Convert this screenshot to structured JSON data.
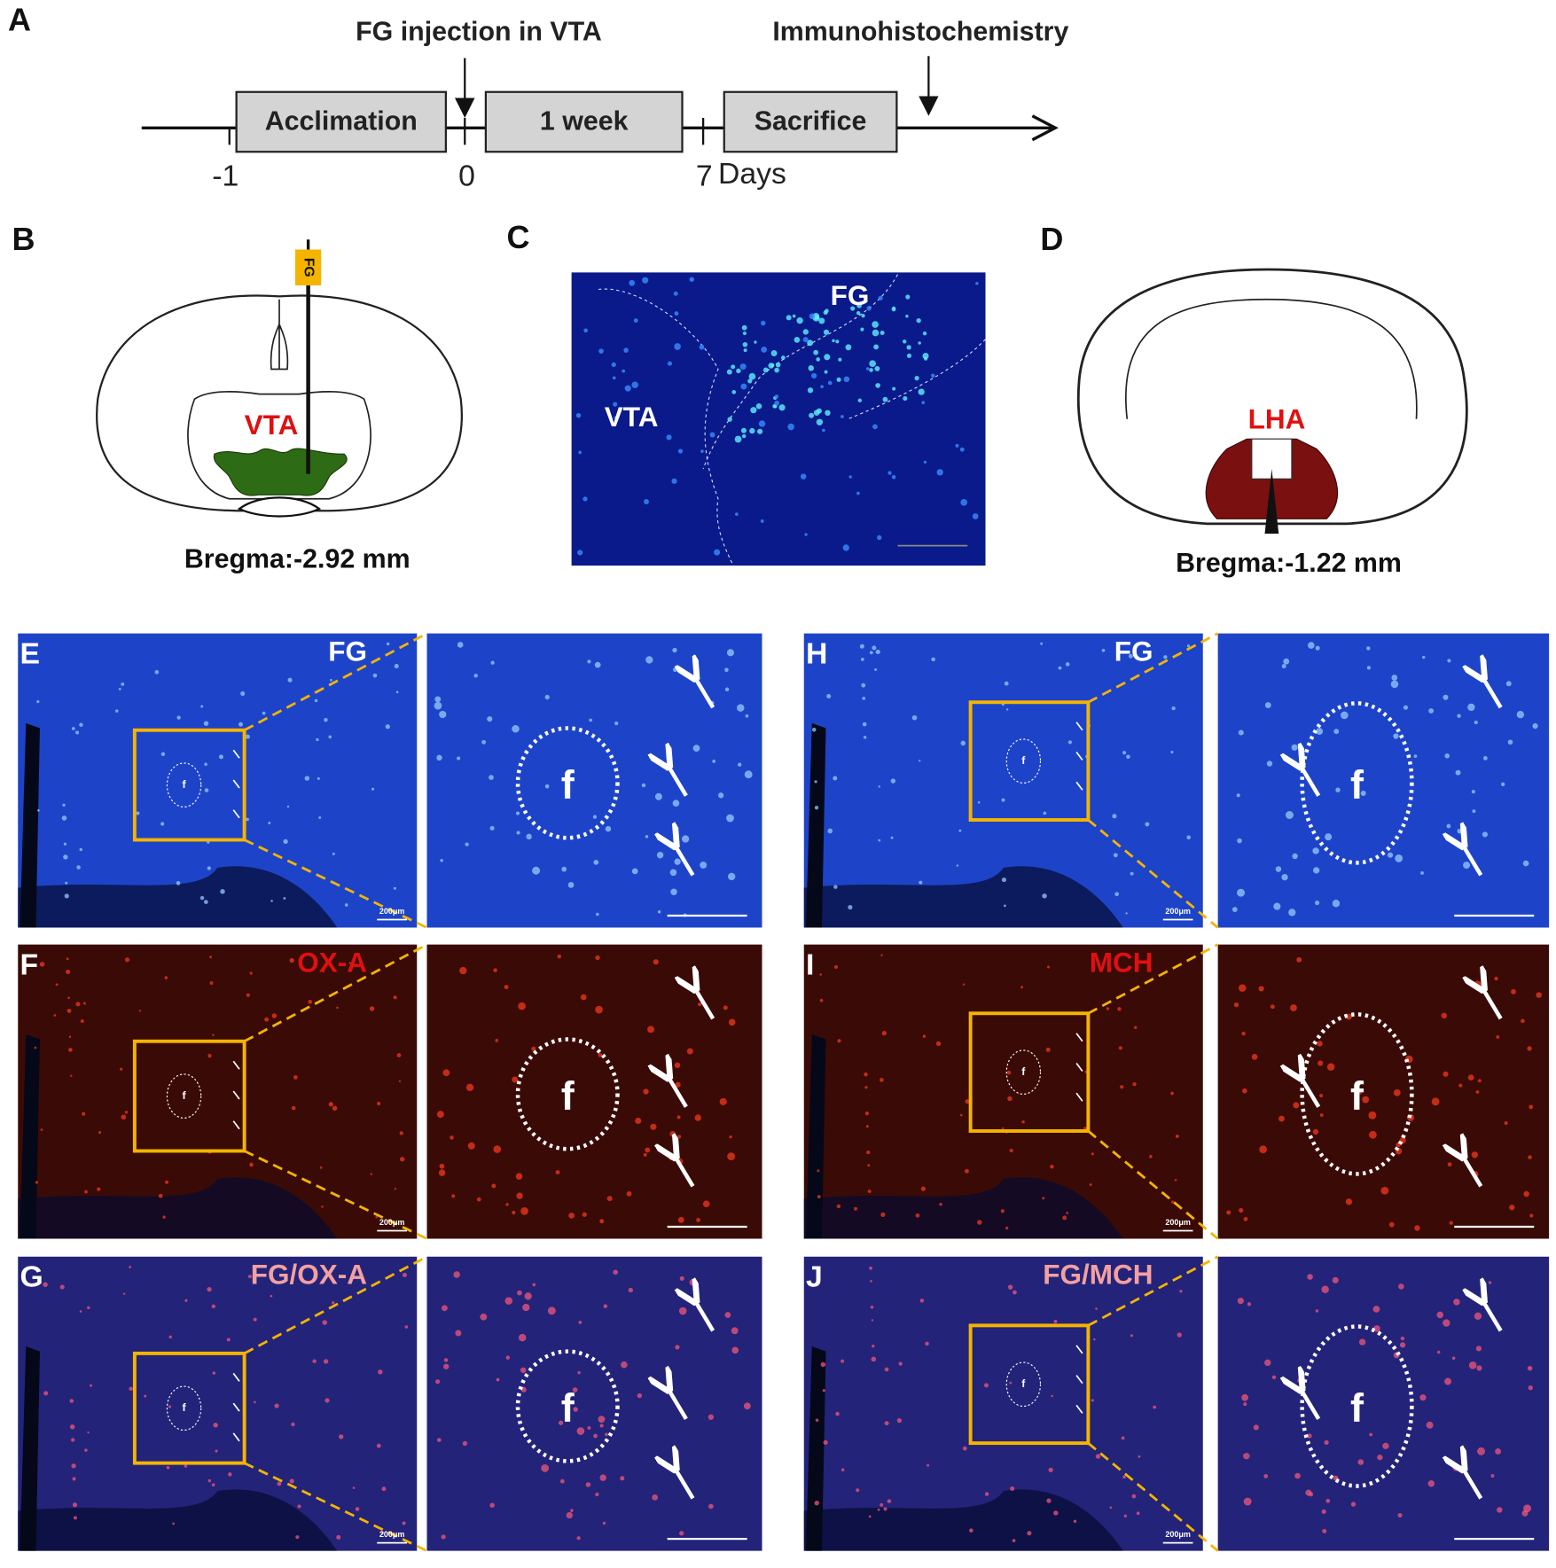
{
  "panel_labels": {
    "a": "A",
    "b": "B",
    "c": "C",
    "d": "D",
    "e": "E",
    "f": "F",
    "g": "G",
    "h": "H",
    "i": "I",
    "j": "J"
  },
  "timeline": {
    "injection": "FG injection in VTA",
    "ihc": "Immunohistochemistry",
    "boxes": [
      "Acclimation",
      "1 week",
      "Sacrifice"
    ],
    "ticks": [
      -1,
      0,
      7
    ],
    "unit": "Days"
  },
  "panel_b": {
    "syringe": "FG",
    "region": "VTA",
    "bregma": "Bregma:-2.92 mm"
  },
  "panel_c": {
    "stain": "FG",
    "region": "VTA"
  },
  "panel_d": {
    "region": "LHA",
    "bregma": "Bregma:-1.22 mm"
  },
  "micrographs": {
    "channels": [
      "FG",
      "OX-A",
      "FG/OX-A",
      "FG",
      "MCH",
      "FG/MCH"
    ],
    "fornix": "f",
    "scale": "200μm"
  }
}
